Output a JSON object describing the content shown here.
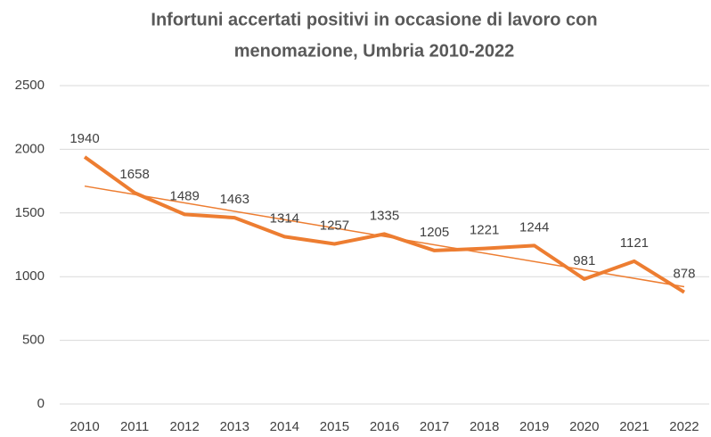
{
  "chart_data": {
    "type": "line",
    "title": [
      "Infortuni accertati positivi in  occasione di lavoro con",
      "menomazione, Umbria 2010-2022"
    ],
    "categories": [
      "2010",
      "2011",
      "2012",
      "2013",
      "2014",
      "2015",
      "2016",
      "2017",
      "2018",
      "2019",
      "2020",
      "2021",
      "2022"
    ],
    "values": [
      1940,
      1658,
      1489,
      1463,
      1314,
      1257,
      1335,
      1205,
      1221,
      1244,
      981,
      1121,
      878
    ],
    "color": "#ed7d31",
    "trendline": true,
    "ylim": [
      0,
      2500
    ],
    "yticks": [
      0,
      500,
      1000,
      1500,
      2000,
      2500
    ],
    "grid": true
  }
}
